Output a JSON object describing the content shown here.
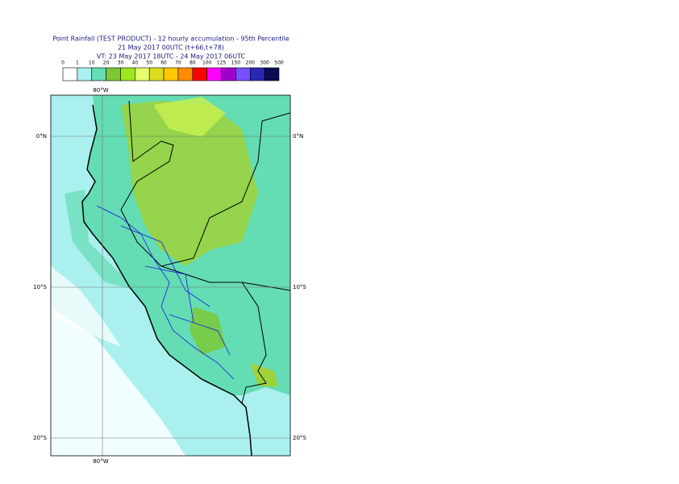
{
  "header": {
    "title": "Point Rainfall (TEST PRODUCT) - 12 hourly accumulation - 95th Percentile",
    "run": "21 May 2017 00UTC (t+66,t+78)",
    "valid": "VT: 23 May 2017 18UTC - 24 May 2017 06UTC"
  },
  "legend": {
    "levels": [
      "0",
      "1",
      "10",
      "20",
      "30",
      "40",
      "50",
      "60",
      "70",
      "80",
      "100",
      "125",
      "150",
      "200",
      "300",
      "500"
    ],
    "colors": [
      "#ffffff",
      "#aaf0ee",
      "#64dcb4",
      "#7cc832",
      "#9ee61e",
      "#e6ff6e",
      "#dcdc1e",
      "#ffc800",
      "#ff8c00",
      "#ff0000",
      "#ff00ff",
      "#a000c8",
      "#7850ff",
      "#2828b4",
      "#0a0a50"
    ]
  },
  "map": {
    "lon_label": "80°W",
    "lat_labels": [
      "0°N",
      "10°S",
      "20°S"
    ]
  }
}
